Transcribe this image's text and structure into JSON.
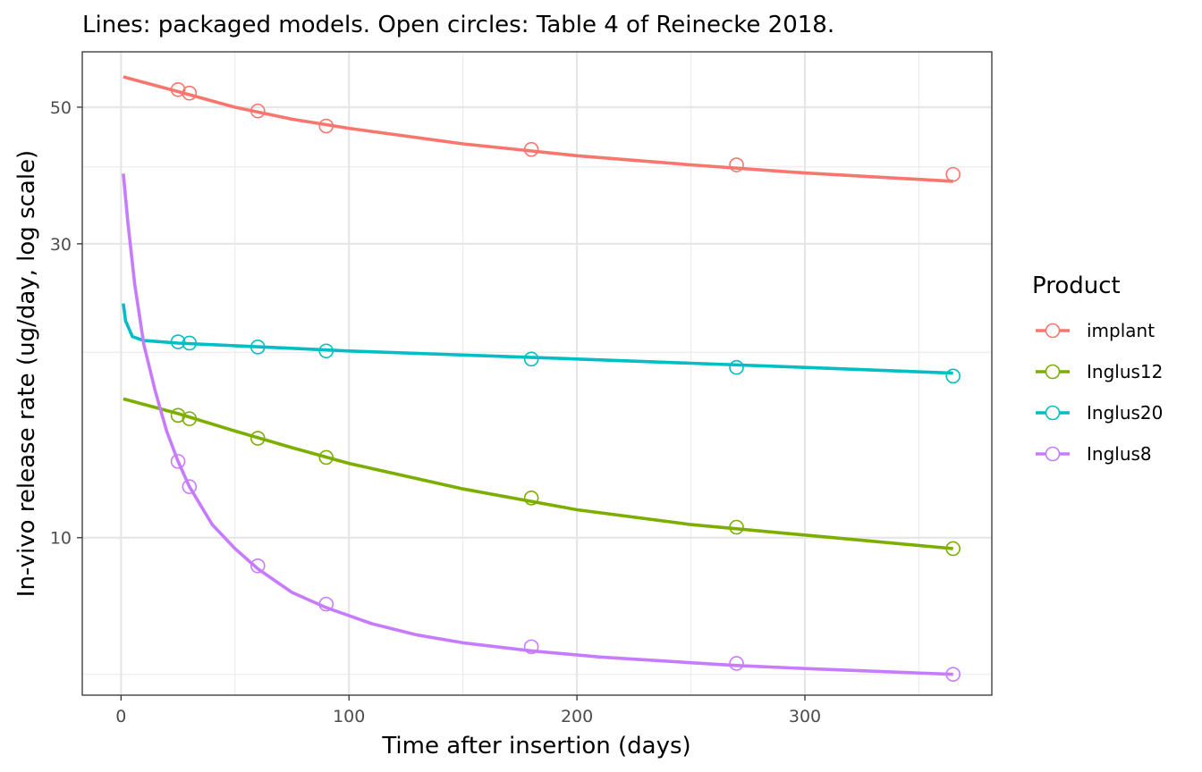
{
  "chart_data": {
    "type": "line",
    "title": "Lines: packaged models. Open circles: Table 4 of Reinecke 2018.",
    "xlabel": "Time after insertion (days)",
    "ylabel": "In-vivo release rate (ug/day, log scale)",
    "x_scale": "linear",
    "y_scale": "log",
    "xlim": [
      -17,
      382
    ],
    "ylim": [
      5.55,
      61.5
    ],
    "x_ticks": [
      0,
      100,
      200,
      300
    ],
    "x_tick_labels": [
      "0",
      "100",
      "200",
      "300"
    ],
    "y_ticks": [
      10,
      30,
      50
    ],
    "y_tick_labels": [
      "10",
      "30",
      "50"
    ],
    "y_minor_ticks": [
      6,
      20,
      40
    ],
    "grid": true,
    "legend": {
      "title": "Product",
      "position": "right",
      "entries": [
        "implant",
        "Inglus12",
        "Inglus20",
        "Inglus8"
      ]
    },
    "series": [
      {
        "name": "implant",
        "color": "#F8766D",
        "line": {
          "x": [
            1,
            25,
            50,
            75,
            100,
            150,
            200,
            250,
            300,
            365
          ],
          "y": [
            56.0,
            53.0,
            50.0,
            47.8,
            46.2,
            43.6,
            41.7,
            40.3,
            39.1,
            37.9
          ]
        },
        "points": {
          "x": [
            25,
            30,
            60,
            90,
            180,
            270,
            365
          ],
          "y": [
            53.4,
            52.7,
            49.3,
            46.6,
            42.7,
            40.3,
            38.9
          ]
        }
      },
      {
        "name": "Inglus12",
        "color": "#7CAE00",
        "line": {
          "x": [
            1,
            25,
            50,
            75,
            100,
            150,
            200,
            250,
            300,
            365
          ],
          "y": [
            16.8,
            15.9,
            14.9,
            14.0,
            13.2,
            12.0,
            11.1,
            10.5,
            10.1,
            9.6
          ]
        },
        "points": {
          "x": [
            25,
            30,
            60,
            90,
            180,
            270,
            365
          ],
          "y": [
            15.8,
            15.6,
            14.5,
            13.5,
            11.6,
            10.4,
            9.6
          ]
        }
      },
      {
        "name": "Inglus20",
        "color": "#00BFC4",
        "line": {
          "x": [
            1,
            2,
            5,
            10,
            25,
            50,
            75,
            100,
            150,
            200,
            250,
            300,
            365
          ],
          "y": [
            24.0,
            22.5,
            21.2,
            20.9,
            20.7,
            20.5,
            20.3,
            20.1,
            19.8,
            19.5,
            19.2,
            18.9,
            18.5
          ]
        },
        "points": {
          "x": [
            25,
            30,
            60,
            90,
            180,
            270,
            365
          ],
          "y": [
            20.8,
            20.7,
            20.4,
            20.1,
            19.5,
            18.9,
            18.3
          ]
        }
      },
      {
        "name": "Inglus8",
        "color": "#C77CFF",
        "line": {
          "x": [
            1,
            3,
            6,
            10,
            15,
            20,
            25,
            30,
            40,
            50,
            60,
            75,
            90,
            110,
            130,
            150,
            180,
            210,
            240,
            270,
            300,
            330,
            365
          ],
          "y": [
            39.0,
            32.5,
            25.8,
            20.6,
            17.3,
            14.9,
            13.3,
            12.1,
            10.5,
            9.6,
            8.9,
            8.15,
            7.7,
            7.25,
            6.95,
            6.75,
            6.55,
            6.4,
            6.3,
            6.2,
            6.13,
            6.07,
            6.0
          ]
        },
        "points": {
          "x": [
            25,
            30,
            60,
            90,
            180,
            270,
            365
          ],
          "y": [
            13.3,
            12.1,
            9.0,
            7.8,
            6.65,
            6.25,
            6.0
          ]
        }
      }
    ]
  }
}
